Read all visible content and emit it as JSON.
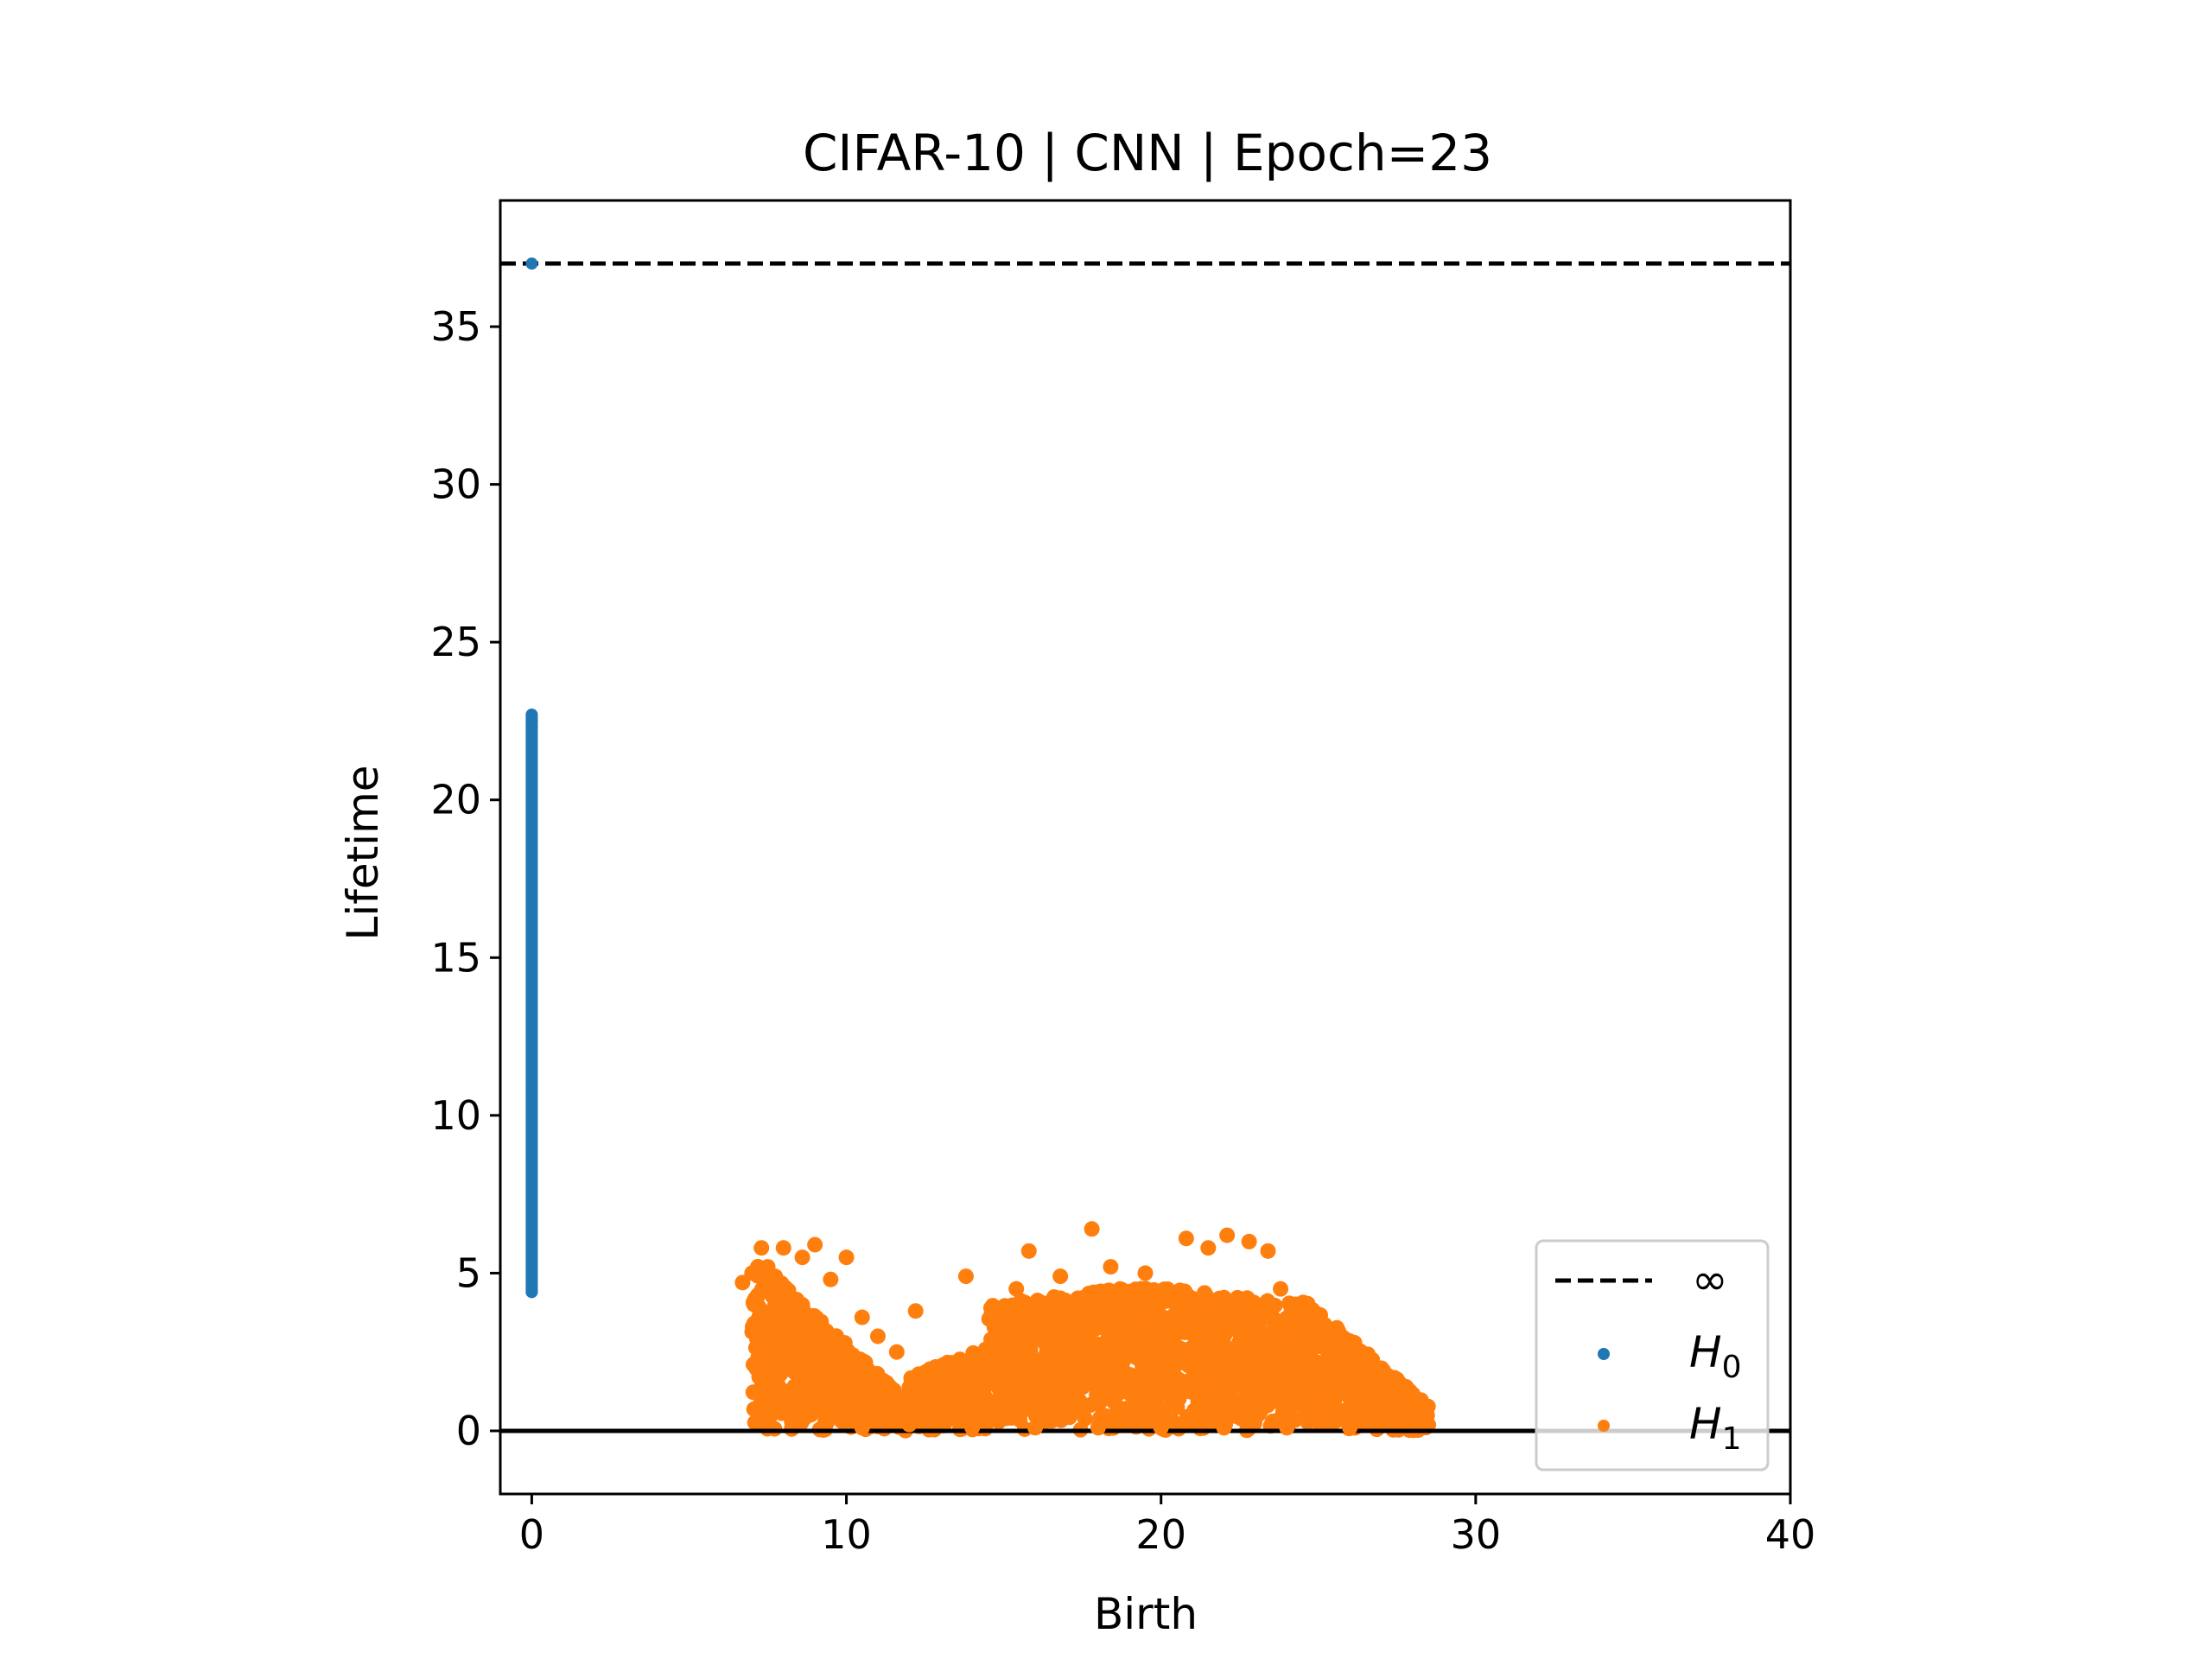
{
  "chart_data": {
    "type": "scatter",
    "title": "CIFAR-10 | CNN | Epoch=23",
    "xlabel": "Birth",
    "ylabel": "Lifetime",
    "xlim": [
      -1,
      40
    ],
    "ylim": [
      -2,
      39
    ],
    "xticks": [
      0,
      10,
      20,
      30,
      40
    ],
    "yticks": [
      0,
      5,
      10,
      15,
      20,
      25,
      30,
      35
    ],
    "grid": false,
    "legend_position": "lower right",
    "infinity_line": {
      "y": 37,
      "label": "∞",
      "style": "dashed",
      "color": "#000000"
    },
    "zero_line": {
      "y": 0,
      "color": "#000000"
    },
    "series": [
      {
        "name": "H0",
        "subscript": "0",
        "color": "#1f77b4",
        "points": [
          [
            0,
            37.0
          ],
          [
            0,
            22.7
          ],
          [
            0,
            22.5
          ],
          [
            0,
            22.3
          ],
          [
            0,
            22.0
          ],
          [
            0,
            21.6
          ],
          [
            0,
            21.3
          ],
          [
            0,
            21.0
          ],
          [
            0,
            20.6
          ],
          [
            0,
            20.3
          ],
          [
            0,
            20.0
          ],
          [
            0,
            19.6
          ],
          [
            0,
            19.2
          ],
          [
            0,
            18.8
          ],
          [
            0,
            18.4
          ],
          [
            0,
            18.0
          ],
          [
            0,
            17.6
          ],
          [
            0,
            17.2
          ],
          [
            0,
            16.8
          ],
          [
            0,
            16.4
          ],
          [
            0,
            16.0
          ],
          [
            0,
            15.6
          ],
          [
            0,
            15.2
          ],
          [
            0,
            14.8
          ],
          [
            0,
            14.4
          ],
          [
            0,
            14.0
          ],
          [
            0,
            13.6
          ],
          [
            0,
            13.2
          ],
          [
            0,
            12.8
          ],
          [
            0,
            12.4
          ],
          [
            0,
            12.0
          ],
          [
            0,
            11.6
          ],
          [
            0,
            11.2
          ],
          [
            0,
            10.8
          ],
          [
            0,
            10.4
          ],
          [
            0,
            10.0
          ],
          [
            0,
            9.6
          ],
          [
            0,
            9.2
          ],
          [
            0,
            8.8
          ],
          [
            0,
            8.4
          ],
          [
            0,
            8.0
          ],
          [
            0,
            7.6
          ],
          [
            0,
            7.2
          ],
          [
            0,
            6.8
          ],
          [
            0,
            6.4
          ],
          [
            0,
            6.0
          ],
          [
            0,
            5.7
          ],
          [
            0,
            5.4
          ],
          [
            0,
            5.1
          ],
          [
            0,
            4.8
          ],
          [
            0,
            4.4
          ]
        ]
      },
      {
        "name": "H1",
        "subscript": "1",
        "color": "#ff7f0e",
        "points": [
          [
            6.7,
            4.7
          ],
          [
            7.0,
            5.0
          ],
          [
            7.3,
            5.8
          ],
          [
            7.5,
            5.2
          ],
          [
            7.8,
            4.3
          ],
          [
            8.0,
            5.8
          ],
          [
            8.3,
            4.0
          ],
          [
            8.6,
            5.5
          ],
          [
            8.8,
            3.5
          ],
          [
            9.0,
            5.9
          ],
          [
            9.2,
            3.0
          ],
          [
            9.5,
            4.8
          ],
          [
            9.7,
            2.6
          ],
          [
            10.0,
            5.5
          ],
          [
            10.2,
            2.2
          ],
          [
            10.5,
            3.6
          ],
          [
            10.8,
            1.8
          ],
          [
            11.0,
            3.0
          ],
          [
            11.3,
            1.3
          ],
          [
            11.6,
            2.5
          ],
          [
            11.9,
            0.9
          ],
          [
            12.2,
            3.8
          ],
          [
            12.5,
            1.0
          ],
          [
            12.8,
            2.0
          ],
          [
            13.2,
            0.5
          ],
          [
            13.8,
            4.9
          ],
          [
            14.2,
            1.2
          ],
          [
            14.6,
            2.9
          ],
          [
            15.0,
            0.8
          ],
          [
            15.4,
            4.5
          ],
          [
            15.8,
            5.7
          ],
          [
            16.1,
            1.7
          ],
          [
            16.4,
            3.7
          ],
          [
            16.8,
            4.9
          ],
          [
            17.1,
            0.6
          ],
          [
            17.5,
            4.2
          ],
          [
            17.8,
            6.4
          ],
          [
            18.1,
            2.5
          ],
          [
            18.4,
            5.2
          ],
          [
            18.8,
            1.4
          ],
          [
            19.1,
            3.6
          ],
          [
            19.5,
            5.0
          ],
          [
            19.8,
            0.7
          ],
          [
            20.1,
            4.4
          ],
          [
            20.5,
            2.3
          ],
          [
            20.8,
            6.1
          ],
          [
            21.2,
            3.3
          ],
          [
            21.5,
            5.8
          ],
          [
            21.8,
            1.0
          ],
          [
            22.1,
            6.2
          ],
          [
            22.4,
            3.9
          ],
          [
            22.8,
            6.0
          ],
          [
            23.1,
            2.1
          ],
          [
            23.4,
            5.7
          ],
          [
            23.8,
            4.5
          ],
          [
            24.1,
            1.2
          ],
          [
            24.5,
            3.2
          ],
          [
            24.8,
            2.6
          ],
          [
            25.1,
            0.8
          ],
          [
            25.5,
            2.2
          ],
          [
            25.8,
            1.5
          ],
          [
            26.2,
            0.6
          ],
          [
            26.6,
            1.4
          ],
          [
            27.0,
            0.9
          ],
          [
            27.4,
            0.5
          ],
          [
            27.8,
            1.0
          ],
          [
            28.2,
            0.4
          ],
          [
            9.6,
            0.6
          ],
          [
            10.5,
            0.1
          ],
          [
            12.0,
            0.2
          ],
          [
            14.0,
            0.1
          ],
          [
            16.0,
            0.1
          ],
          [
            18.0,
            0.1
          ],
          [
            20.0,
            0.1
          ],
          [
            22.0,
            0.1
          ],
          [
            24.0,
            0.1
          ],
          [
            26.0,
            0.1
          ]
        ]
      }
    ]
  }
}
